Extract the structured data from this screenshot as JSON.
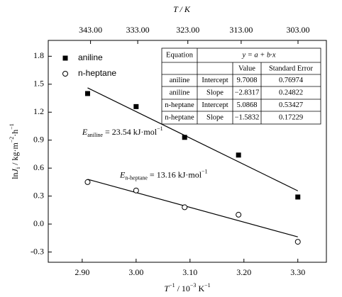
{
  "chart_data": {
    "type": "scatter",
    "xlabel": {
      "base": "T",
      "sup1": "−1",
      "mid": " / 10",
      "sup2": "−3",
      "unit": " K",
      "sup3": "−1"
    },
    "ylabel": {
      "base": "ln",
      "sym": "J",
      "sub": "i",
      "mid": " / kg·m",
      "sup1": "−2",
      "mid2": "·h",
      "sup2": "−1"
    },
    "x2label": "T / K",
    "xlim": [
      2.837,
      3.353
    ],
    "ylim": [
      -0.41,
      1.97
    ],
    "xticks": [
      {
        "value": 2.9,
        "label": "2.90"
      },
      {
        "value": 3.0,
        "label": "3.00"
      },
      {
        "value": 3.1,
        "label": "3.10"
      },
      {
        "value": 3.2,
        "label": "3.20"
      },
      {
        "value": 3.3,
        "label": "3.30"
      }
    ],
    "yticks": [
      -0.3,
      {
        "value": 0,
        "label": "0.0"
      },
      0.3,
      0.6,
      0.9,
      1.2,
      1.5,
      1.8
    ],
    "x2scale": "reciprocal",
    "x2factor": 1000,
    "x2ticks": [
      {
        "value": 343,
        "label": "343.00"
      },
      {
        "value": 333,
        "label": "333.00"
      },
      {
        "value": 323,
        "label": "323.00"
      },
      {
        "value": 313,
        "label": "313.00"
      },
      {
        "value": 303,
        "label": "303.00"
      }
    ],
    "series": [
      {
        "name": "aniline",
        "marker": "square",
        "color": "#000000",
        "x": [
          2.91,
          3.0,
          3.09,
          3.19,
          3.3
        ],
        "values": [
          1.4,
          1.26,
          0.93,
          0.74,
          0.29
        ]
      },
      {
        "name": "n-heptane",
        "marker": "circle",
        "color": "#000000",
        "x": [
          2.91,
          3.0,
          3.09,
          3.19,
          3.3
        ],
        "values": [
          0.45,
          0.36,
          0.18,
          0.1,
          -0.19
        ]
      }
    ],
    "fit_lines": [
      {
        "x": [
          2.91,
          3.3
        ],
        "values": [
          1.461,
          0.356
        ]
      },
      {
        "x": [
          2.91,
          3.3
        ],
        "values": [
          0.48,
          -0.138
        ]
      }
    ],
    "annotations": [
      {
        "sym": "E",
        "sub": "aniline",
        "text": " = 23.54 kJ·mol",
        "sup": "−1",
        "x": 2.9,
        "y": 0.98
      },
      {
        "sym": "E",
        "sub": "n-heptane",
        "text": " = 13.16 kJ·mol",
        "sup": "−1",
        "x": 2.97,
        "y": 0.52
      }
    ],
    "table": {
      "equation_label": "Equation",
      "equation": "y = a + b·x",
      "columns": [
        "Value",
        "Standard Error"
      ],
      "rows": [
        [
          "aniline",
          "Intercept",
          "9.7008",
          "0.76974"
        ],
        [
          "aniline",
          "Slope",
          "−2.8317",
          "0.24822"
        ],
        [
          "n-heptane",
          "Intercept",
          "5.0868",
          "0.53427"
        ],
        [
          "n-heptane",
          "Slope",
          "−1.5832",
          "0.17229"
        ]
      ]
    }
  }
}
